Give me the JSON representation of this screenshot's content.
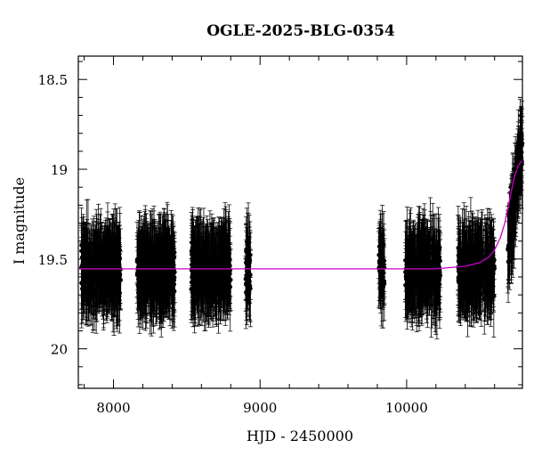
{
  "chart_data": {
    "type": "scatter",
    "title": "OGLE-2025-BLG-0354",
    "xlabel": "HJD - 2450000",
    "ylabel": "I magnitude",
    "xlim": [
      7760,
      10790
    ],
    "ylim": [
      20.22,
      18.37
    ],
    "y_inverted": true,
    "x_ticks": [
      8000,
      9000,
      10000
    ],
    "x_tick_labels": [
      "8000",
      "9000",
      "10000"
    ],
    "y_ticks": [
      18.5,
      19,
      19.5,
      20
    ],
    "y_tick_labels": [
      "18.5",
      "19",
      "19.5",
      "20"
    ],
    "grid": false,
    "legend": "none",
    "series": [
      {
        "kind": "points_with_errorbars",
        "color": "#000000",
        "baseline_mag": 19.56,
        "scatter_mag": 0.1,
        "typical_error_mag": 0.18,
        "seasons": [
          {
            "x_start": 7780,
            "x_end": 8050
          },
          {
            "x_start": 8160,
            "x_end": 8420
          },
          {
            "x_start": 8530,
            "x_end": 8800
          },
          {
            "x_start": 8900,
            "x_end": 8935
          },
          {
            "x_start": 9810,
            "x_end": 9850
          },
          {
            "x_start": 9990,
            "x_end": 10230
          },
          {
            "x_start": 10350,
            "x_end": 10600
          },
          {
            "x_start": 10690,
            "x_end": 10790
          }
        ],
        "rising_points": [
          {
            "x": 10690,
            "y": 19.25
          },
          {
            "x": 10710,
            "y": 19.1
          },
          {
            "x": 10730,
            "y": 19.0
          },
          {
            "x": 10750,
            "y": 18.9
          },
          {
            "x": 10770,
            "y": 18.83
          },
          {
            "x": 10785,
            "y": 18.8
          }
        ]
      },
      {
        "kind": "model_line",
        "color": "#cc00cc",
        "x": [
          7760,
          10200,
          10400,
          10500,
          10560,
          10600,
          10640,
          10670,
          10700,
          10730,
          10760,
          10790
        ],
        "y": [
          19.555,
          19.555,
          19.54,
          19.52,
          19.49,
          19.45,
          19.38,
          19.3,
          19.18,
          19.06,
          18.98,
          18.95
        ]
      }
    ]
  }
}
